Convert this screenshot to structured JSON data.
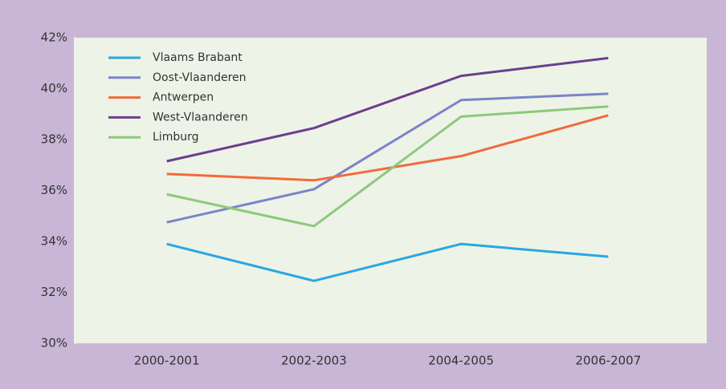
{
  "chart_data": {
    "type": "line",
    "categories": [
      "2000-2001",
      "2002-2003",
      "2004-2005",
      "2006-2007"
    ],
    "series": [
      {
        "name": "Vlaams Brabant",
        "color": "#2aa7e1",
        "values": [
          33.9,
          32.45,
          33.9,
          33.4
        ]
      },
      {
        "name": "Oost-Vlaanderen",
        "color": "#7a84c6",
        "values": [
          34.75,
          36.05,
          39.55,
          39.8
        ]
      },
      {
        "name": "Antwerpen",
        "color": "#f06a3c",
        "values": [
          36.65,
          36.4,
          37.35,
          38.95
        ]
      },
      {
        "name": "West-Vlaanderen",
        "color": "#6b3f8e",
        "values": [
          37.15,
          38.45,
          40.5,
          41.2
        ]
      },
      {
        "name": "Limburg",
        "color": "#8dc97b",
        "values": [
          35.85,
          34.6,
          38.9,
          39.3
        ]
      }
    ],
    "ylim": [
      30,
      42
    ],
    "yticks": [
      {
        "value": 30,
        "label": "30%"
      },
      {
        "value": 32,
        "label": "32%"
      },
      {
        "value": 34,
        "label": "34%"
      },
      {
        "value": 36,
        "label": "36%"
      },
      {
        "value": 38,
        "label": "38%"
      },
      {
        "value": 40,
        "label": "40%"
      },
      {
        "value": 42,
        "label": "42%"
      }
    ],
    "legend": "upper left"
  }
}
